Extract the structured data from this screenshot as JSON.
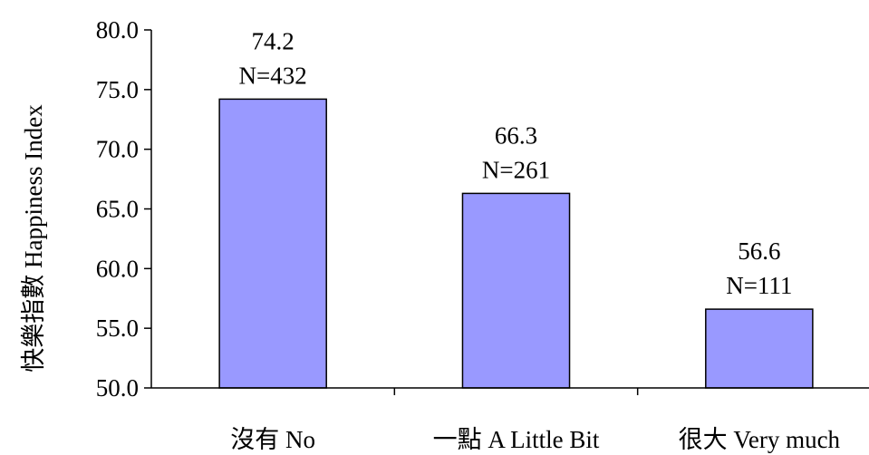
{
  "chart_data": {
    "type": "bar",
    "categories": [
      "沒有 No",
      "一點 A Little Bit",
      "很大 Very much"
    ],
    "values": [
      74.2,
      66.3,
      56.6
    ],
    "data_labels": [
      {
        "value": "74.2",
        "n": "N=432"
      },
      {
        "value": "66.3",
        "n": "N=261"
      },
      {
        "value": "56.6",
        "n": "N=111"
      }
    ],
    "ylabel": "快樂指數 Happiness Index",
    "xlabel": "",
    "ylim": [
      50,
      80
    ],
    "yticks": [
      50,
      55,
      60,
      65,
      70,
      75,
      80
    ],
    "ytick_labels": [
      "50.0",
      "55.0",
      "60.0",
      "65.0",
      "70.0",
      "75.0",
      "80.0"
    ],
    "bar_color": "#9999ff",
    "grid": false,
    "legend": "none"
  }
}
